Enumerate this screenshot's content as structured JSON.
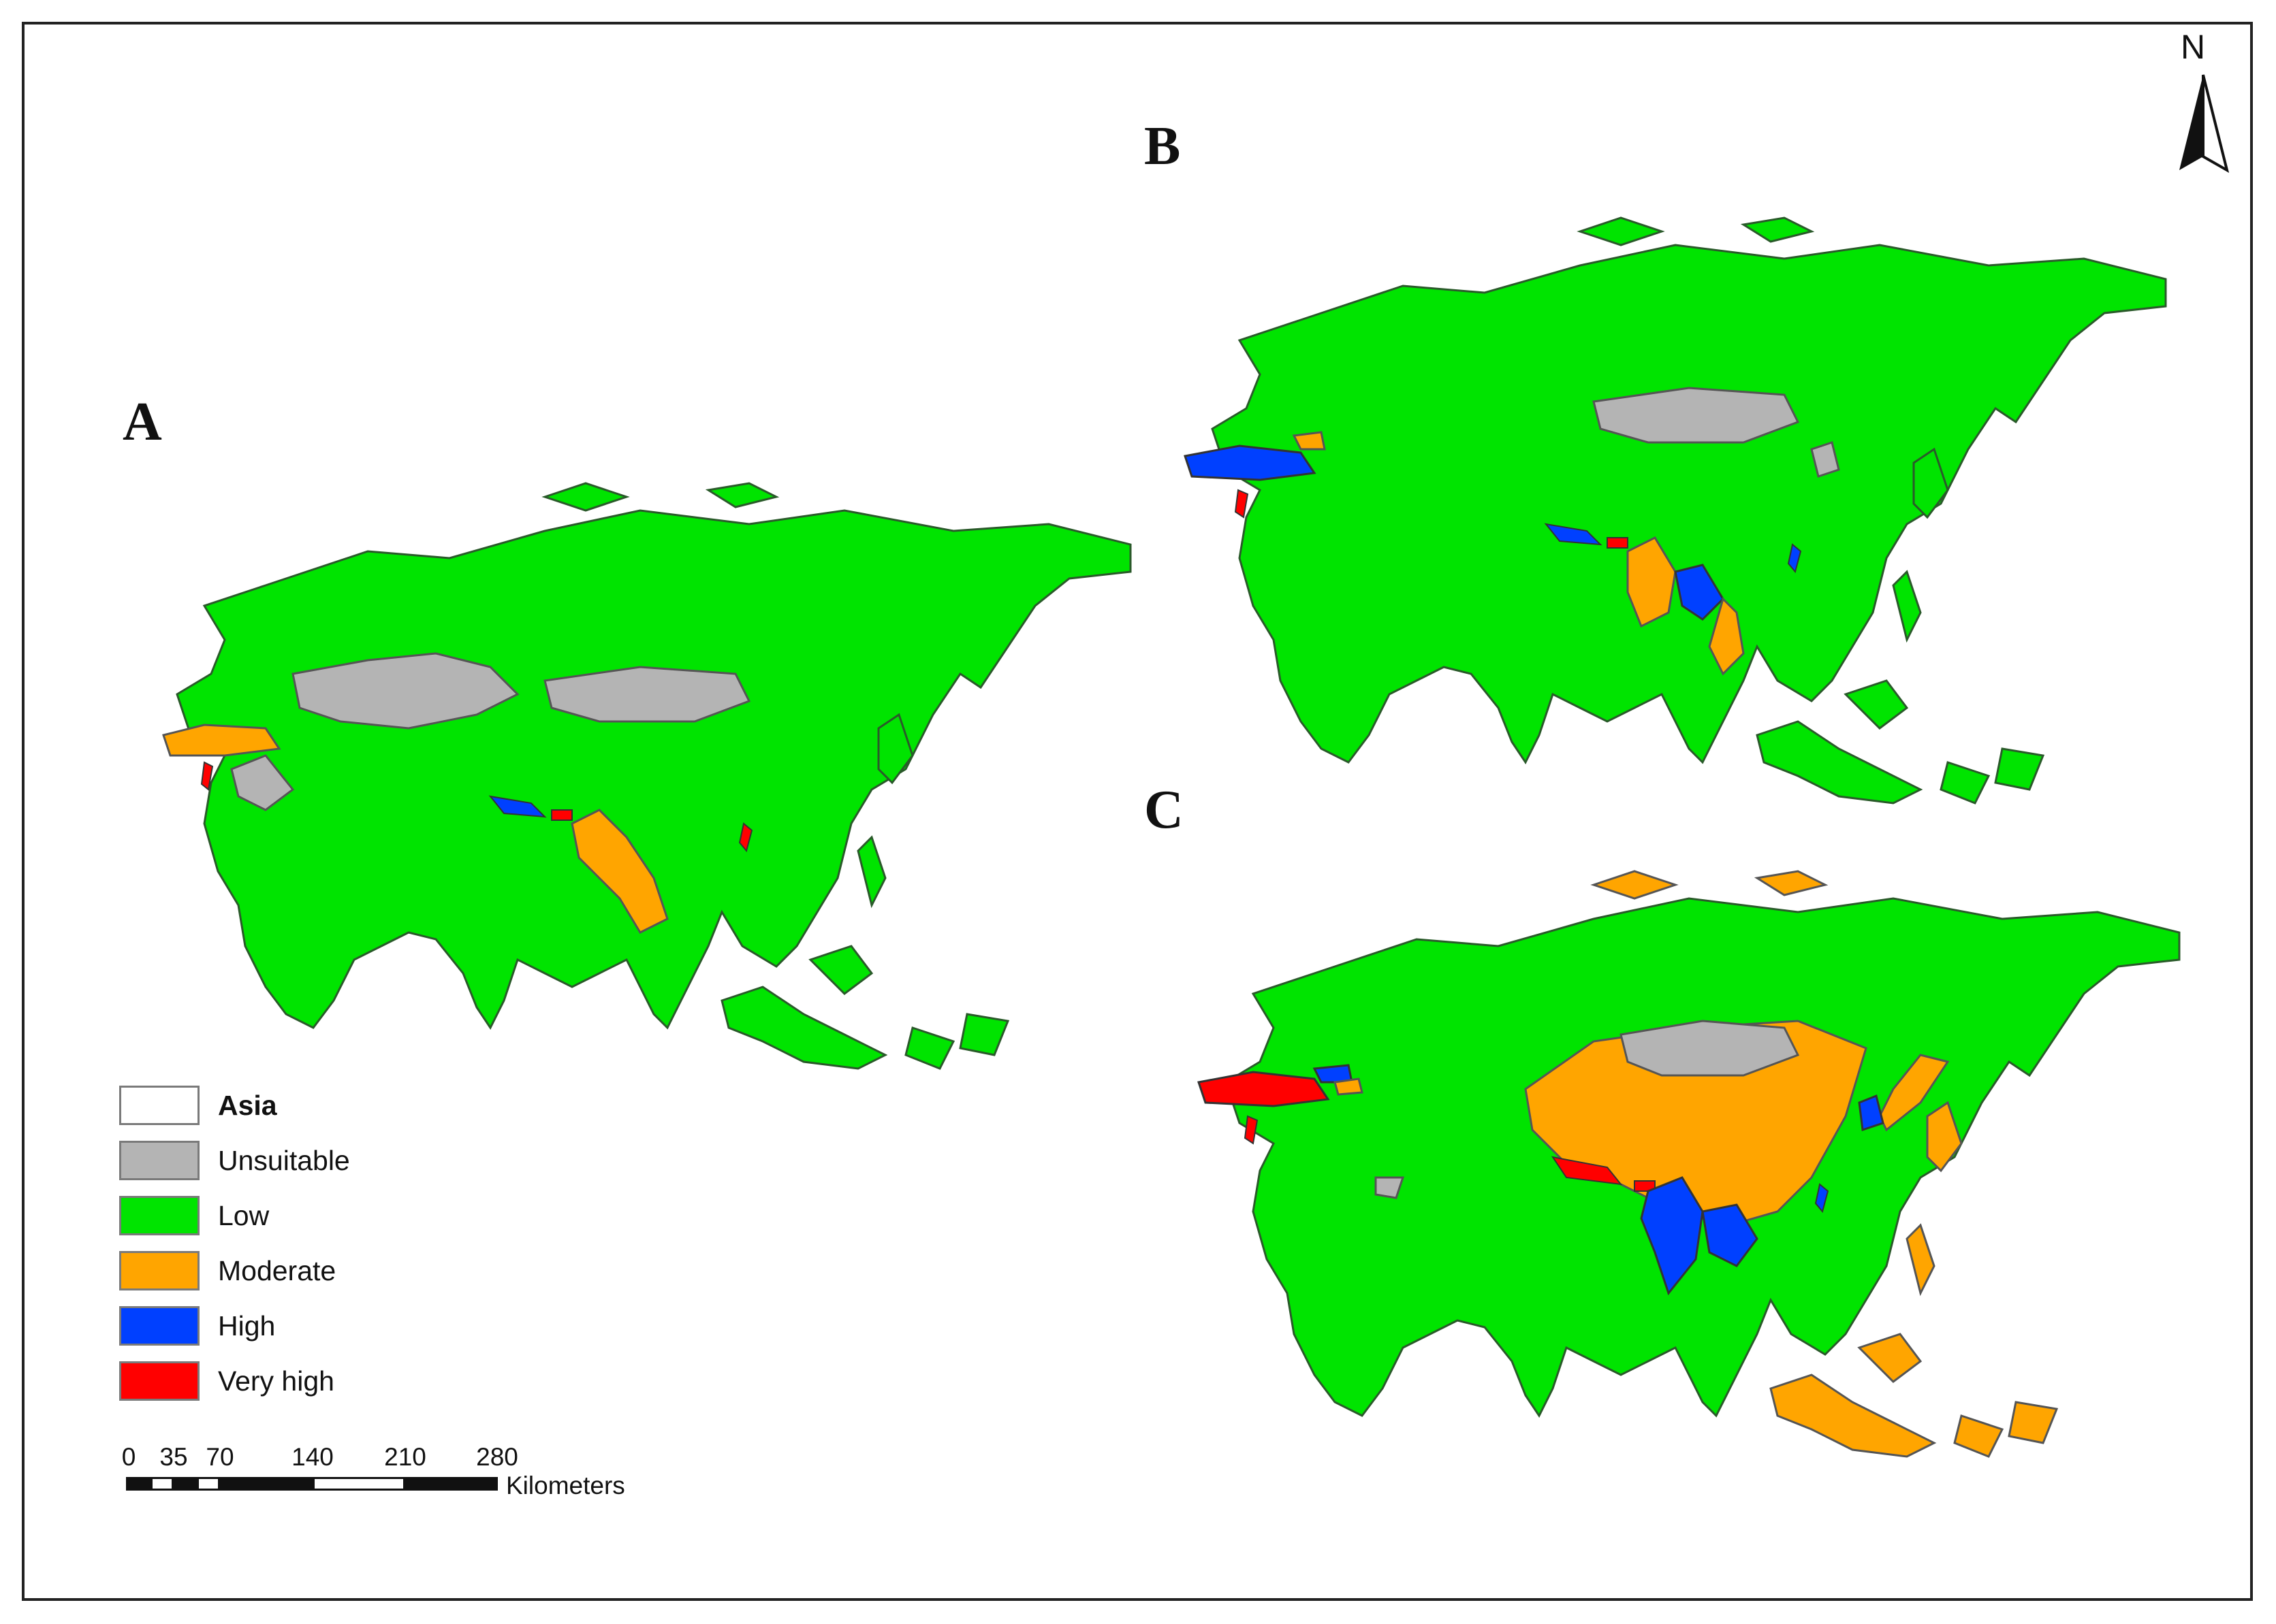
{
  "panels": [
    {
      "label": "A"
    },
    {
      "label": "B"
    },
    {
      "label": "C"
    }
  ],
  "legend": {
    "title": "Asia",
    "classes": [
      {
        "label": "Unsuitable",
        "color": "#b4b4b4"
      },
      {
        "label": "Low",
        "color": "#00e400"
      },
      {
        "label": "Moderate",
        "color": "#ffa500"
      },
      {
        "label": "High",
        "color": "#0040ff"
      },
      {
        "label": "Very high",
        "color": "#ff0000"
      }
    ]
  },
  "scale_bar": {
    "ticks": [
      "0",
      "35",
      "70",
      "140",
      "210",
      "280"
    ],
    "units": "Kilometers"
  },
  "north_arrow": {
    "label": "N"
  },
  "colors": {
    "unsuitable": "#b4b4b4",
    "low": "#00e400",
    "moderate": "#ffa500",
    "high": "#0040ff",
    "very_high": "#ff0000",
    "outline": "#2a5a2a"
  }
}
